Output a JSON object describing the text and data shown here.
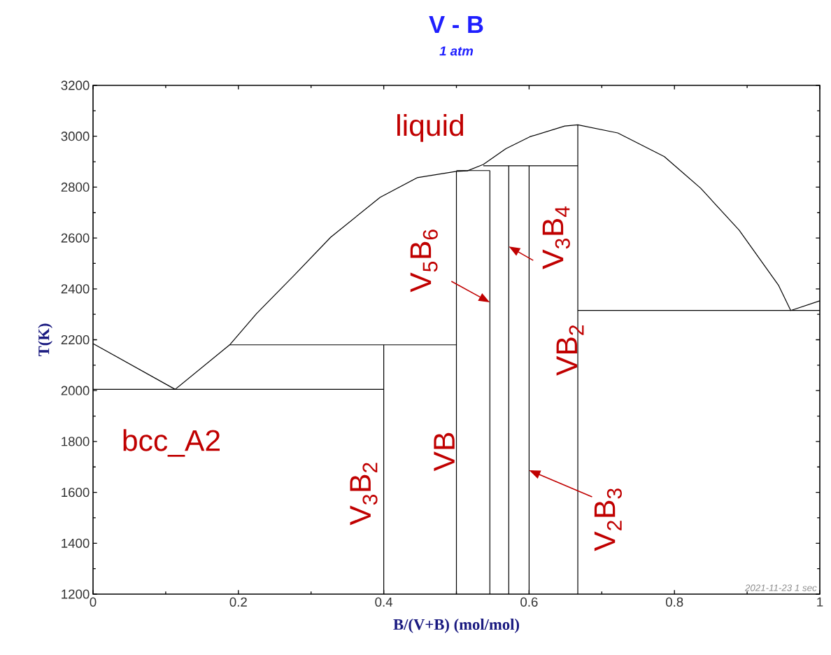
{
  "chart_data": {
    "type": "line",
    "title": "V - B",
    "subtitle": "1 atm",
    "xlabel": "B/(V+B) (mol/mol)",
    "ylabel": "T(K)",
    "xlim": [
      0,
      1
    ],
    "ylim": [
      1200,
      3200
    ],
    "xticks": [
      0,
      0.2,
      0.4,
      0.6,
      0.8,
      1
    ],
    "yticks": [
      1200,
      1400,
      1600,
      1800,
      2000,
      2200,
      2400,
      2600,
      2800,
      3000,
      3200
    ],
    "series": [
      {
        "color": "#000000",
        "x": [
          0,
          0.113
        ],
        "values": [
          2185,
          2005
        ]
      },
      {
        "color": "#000000",
        "x": [
          0.113,
          0.188,
          0.225,
          0.277,
          0.327,
          0.395,
          0.446,
          0.5,
          0.515,
          0.537,
          0.568,
          0.601,
          0.649,
          0.667,
          0.722,
          0.786,
          0.836,
          0.889,
          0.943,
          0.96,
          1.0
        ],
        "values": [
          2005,
          2180,
          2303,
          2454,
          2603,
          2760,
          2837,
          2862,
          2864,
          2889,
          2951,
          2998,
          3040,
          3045,
          3013,
          2920,
          2796,
          2631,
          2415,
          2315,
          2353
        ]
      },
      {
        "color": "#000000",
        "x": [
          0,
          0.4
        ],
        "values": [
          2005,
          2005
        ]
      },
      {
        "color": "#000000",
        "x": [
          0.188,
          0.4,
          0.4
        ],
        "values": [
          2180,
          2180,
          1200
        ]
      },
      {
        "color": "#000000",
        "x": [
          0.4,
          0.5
        ],
        "values": [
          2180,
          2180
        ]
      },
      {
        "color": "#000000",
        "x": [
          0.5,
          0.546
        ],
        "values": [
          2865,
          2865
        ]
      },
      {
        "color": "#000000",
        "x": [
          0.537,
          0.6,
          0.6
        ],
        "values": [
          2884,
          2884,
          1200
        ]
      },
      {
        "color": "#000000",
        "x": [
          0.6,
          0.667
        ],
        "values": [
          2884,
          2884
        ]
      },
      {
        "color": "#000000",
        "x": [
          0.667,
          1
        ],
        "values": [
          2315,
          2315
        ]
      },
      {
        "color": "#000000",
        "x": [
          0.5,
          0.5
        ],
        "values": [
          1200,
          2862
        ]
      },
      {
        "color": "#000000",
        "x": [
          0.546,
          0.546
        ],
        "values": [
          1200,
          2865
        ]
      },
      {
        "color": "#000000",
        "x": [
          0.572,
          0.572
        ],
        "values": [
          1200,
          2884
        ]
      },
      {
        "color": "#000000",
        "x": [
          0.667,
          0.667
        ],
        "values": [
          1200,
          3045
        ]
      }
    ],
    "annotations": [
      "liquid",
      "bcc_A2",
      "V$_{3}$B$_{2}$",
      "VB",
      {
        "text": "V$_{5}$B$_{6}$",
        "x": 0.546,
        "y": 2347
      },
      {
        "text": "V$_{3}$B$_{4}$",
        "x": 0.572,
        "y": 2567
      },
      "VB$_{2}$",
      {
        "text": "V$_{2}$B$_{3}$",
        "x": 0.6,
        "y": 1687
      },
      "2021-11-23  1 sec"
    ]
  }
}
